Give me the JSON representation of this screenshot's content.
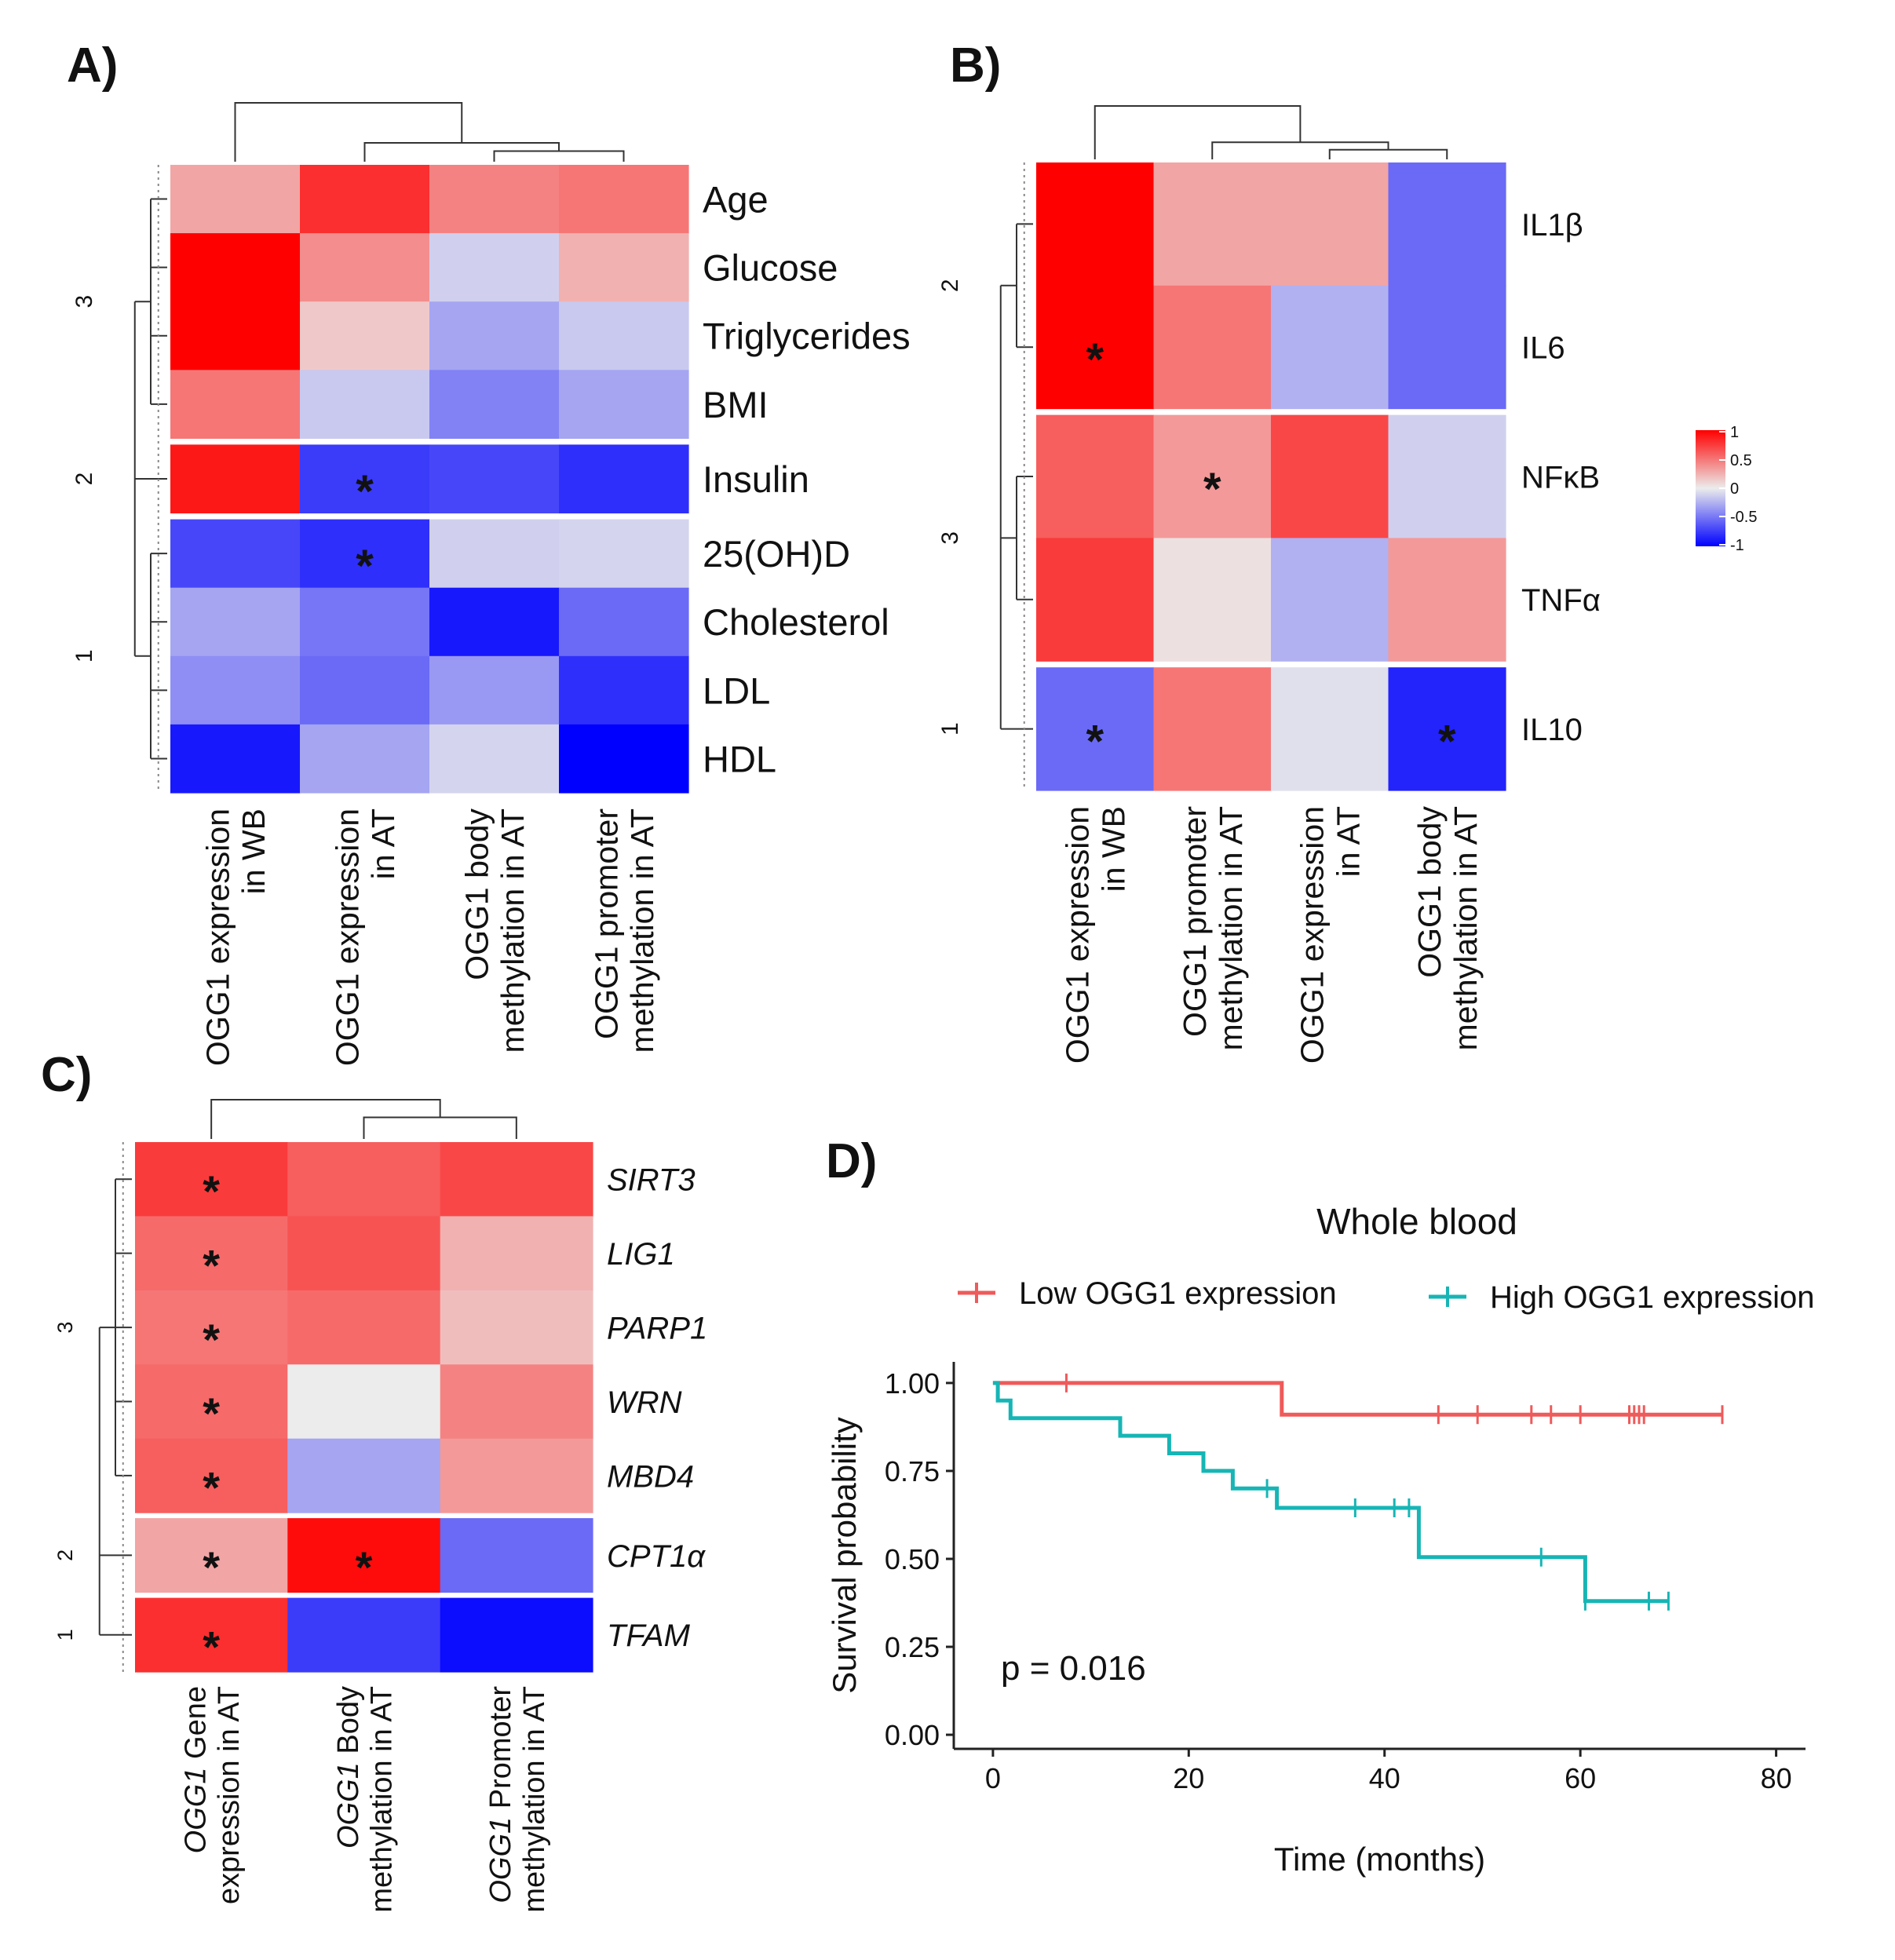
{
  "colors": {
    "positive": "#ff0000",
    "zero": "#ececec",
    "negative": "#0000ff",
    "dendrogram": "#333333",
    "low_curve": "#ef5a5a",
    "high_curve": "#17b5b5",
    "axis": "#222222"
  },
  "chart_data": [
    {
      "panel": "A)",
      "type": "heatmap",
      "columns": [
        "OGG1 expression in WB",
        "OGG1 expression in AT",
        "OGG1 body methylation in AT",
        "OGG1 promoter methylation in AT"
      ],
      "column_label_lines": [
        [
          "OGG1 expression",
          "in WB"
        ],
        [
          "OGG1 expression",
          "in AT"
        ],
        [
          "OGG1 body",
          "methylation in AT"
        ],
        [
          "OGG1 promoter",
          "methylation in AT"
        ]
      ],
      "rows": [
        "Age",
        "Glucose",
        "Triglycerides",
        "BMI",
        "Insulin",
        "25(OH)D",
        "Cholesterol",
        "LDL",
        "HDL"
      ],
      "values": [
        [
          0.3,
          0.8,
          0.45,
          0.5
        ],
        [
          1.0,
          0.4,
          -0.12,
          0.25
        ],
        [
          1.0,
          0.15,
          -0.3,
          -0.15
        ],
        [
          0.5,
          -0.15,
          -0.45,
          -0.3
        ],
        [
          0.9,
          -0.75,
          -0.7,
          -0.8
        ],
        [
          -0.7,
          -0.8,
          -0.12,
          -0.1
        ],
        [
          -0.3,
          -0.5,
          -0.9,
          -0.55
        ],
        [
          -0.4,
          -0.55,
          -0.35,
          -0.8
        ],
        [
          -0.9,
          -0.3,
          -0.1,
          -1.0
        ]
      ],
      "significant": [
        [
          4,
          1
        ],
        [
          5,
          1
        ]
      ],
      "row_clusters": [
        {
          "label": "3",
          "rows": 4
        },
        {
          "label": "2",
          "rows": 1
        },
        {
          "label": "1",
          "rows": 4
        }
      ]
    },
    {
      "panel": "B)",
      "type": "heatmap",
      "columns": [
        "OGG1 expression in WB",
        "OGG1 promoter methylation in AT",
        "OGG1 expression in AT",
        "OGG1 body methylation in AT"
      ],
      "column_label_lines": [
        [
          "OGG1 expression",
          "in WB"
        ],
        [
          "OGG1 promoter",
          "methylation in AT"
        ],
        [
          "OGG1 expression",
          "in AT"
        ],
        [
          "OGG1 body",
          "methylation in AT"
        ]
      ],
      "rows": [
        "IL1β",
        "IL6",
        "NFκB",
        "TNFα",
        "IL10"
      ],
      "values": [
        [
          1.0,
          0.3,
          0.3,
          -0.55
        ],
        [
          1.0,
          0.5,
          -0.25,
          -0.55
        ],
        [
          0.6,
          0.35,
          0.7,
          -0.12
        ],
        [
          0.75,
          0.05,
          -0.25,
          0.35
        ],
        [
          -0.55,
          0.5,
          -0.05,
          -0.85
        ]
      ],
      "significant": [
        [
          1,
          0
        ],
        [
          2,
          1
        ],
        [
          4,
          0
        ],
        [
          4,
          3
        ]
      ],
      "row_clusters": [
        {
          "label": "2",
          "rows": 2
        },
        {
          "label": "3",
          "rows": 2
        },
        {
          "label": "1",
          "rows": 1
        }
      ],
      "legend": {
        "ticks": [
          "1",
          "0.5",
          "0",
          "-0.5",
          "-1"
        ],
        "range": [
          -1,
          1
        ]
      }
    },
    {
      "panel": "C)",
      "type": "heatmap",
      "columns": [
        "OGG1 Gene expression in AT",
        "OGG1 Body methylation in AT",
        "OGG1 Promoter methylation in AT"
      ],
      "column_label_lines": [
        [
          "OGG1 Gene",
          "expression in AT"
        ],
        [
          "OGG1 Body",
          "methylation in AT"
        ],
        [
          "OGG1 Promoter",
          "methylation in AT"
        ]
      ],
      "rows": [
        "SIRT3",
        "LIG1",
        "PARP1",
        "WRN",
        "MBD4",
        "CPT1α",
        "TFAM"
      ],
      "values": [
        [
          0.75,
          0.6,
          0.7
        ],
        [
          0.55,
          0.65,
          0.25
        ],
        [
          0.5,
          0.55,
          0.2
        ],
        [
          0.55,
          0.0,
          0.45
        ],
        [
          0.6,
          -0.3,
          0.35
        ],
        [
          0.3,
          0.95,
          -0.55
        ],
        [
          0.8,
          -0.75,
          -0.95
        ]
      ],
      "significant": [
        [
          0,
          0
        ],
        [
          1,
          0
        ],
        [
          2,
          0
        ],
        [
          3,
          0
        ],
        [
          4,
          0
        ],
        [
          5,
          0
        ],
        [
          5,
          1
        ],
        [
          6,
          0
        ]
      ],
      "row_clusters": [
        {
          "label": "3",
          "rows": 5
        },
        {
          "label": "2",
          "rows": 1
        },
        {
          "label": "1",
          "rows": 1
        }
      ]
    },
    {
      "panel": "D)",
      "type": "line",
      "subtype": "kaplan-meier",
      "title": "Whole blood",
      "xlabel": "Time (months)",
      "ylabel": "Survival probability",
      "xlim": [
        -4,
        83
      ],
      "ylim": [
        -0.04,
        1.06
      ],
      "xticks": [
        0,
        20,
        40,
        60,
        80
      ],
      "yticks": [
        0,
        0.25,
        0.5,
        0.75,
        1.0
      ],
      "ytick_labels": [
        "0.00",
        "0.25",
        "0.50",
        "0.75",
        "1.00"
      ],
      "annotation": "p = 0.016",
      "series": [
        {
          "name": "Low OGG1 expression",
          "color": "#ef5a5a",
          "steps": [
            [
              0,
              1.0
            ],
            [
              29.5,
              1.0
            ],
            [
              29.5,
              0.91
            ],
            [
              74.5,
              0.91
            ]
          ],
          "censor_times": [
            7.5,
            45.5,
            49.5,
            55.0,
            57.0,
            60.0,
            65.0,
            65.5,
            66.0,
            66.5,
            74.5
          ]
        },
        {
          "name": "High OGG1 expression",
          "color": "#17b5b5",
          "steps": [
            [
              0,
              1.0
            ],
            [
              0.5,
              1.0
            ],
            [
              0.5,
              0.95
            ],
            [
              1.8,
              0.95
            ],
            [
              1.8,
              0.9
            ],
            [
              13.0,
              0.9
            ],
            [
              13.0,
              0.85
            ],
            [
              18.0,
              0.85
            ],
            [
              18.0,
              0.8
            ],
            [
              21.5,
              0.8
            ],
            [
              21.5,
              0.75
            ],
            [
              24.5,
              0.75
            ],
            [
              24.5,
              0.7
            ],
            [
              29.0,
              0.7
            ],
            [
              29.0,
              0.645
            ],
            [
              43.5,
              0.645
            ],
            [
              43.5,
              0.505
            ],
            [
              60.5,
              0.505
            ],
            [
              60.5,
              0.38
            ],
            [
              69.0,
              0.38
            ]
          ],
          "censor_times": [
            28.0,
            37.0,
            41.0,
            42.5,
            56.0,
            60.5,
            67.0,
            69.0
          ]
        }
      ]
    }
  ]
}
